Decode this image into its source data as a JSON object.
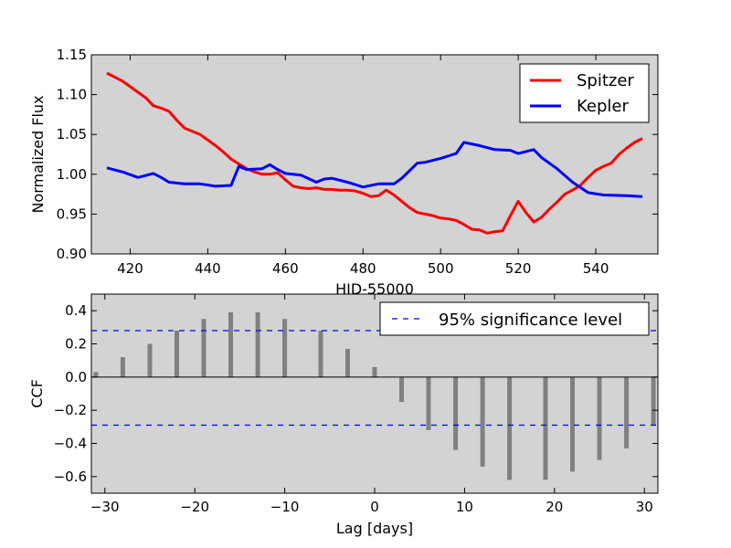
{
  "chart_data": [
    {
      "type": "line",
      "title": "",
      "xlabel": "HID-55000",
      "ylabel": "Normalized Flux",
      "xlim": [
        410,
        556
      ],
      "ylim": [
        0.9,
        1.15
      ],
      "xticks": [
        420,
        440,
        460,
        480,
        500,
        520,
        540
      ],
      "xtick_labels": [
        "420",
        "440",
        "460",
        "480",
        "500",
        "520",
        "540"
      ],
      "yticks": [
        0.9,
        0.95,
        1.0,
        1.05,
        1.1,
        1.15
      ],
      "ytick_labels": [
        "0.90",
        "0.95",
        "1.00",
        "1.05",
        "1.10",
        "1.15"
      ],
      "background": "#d3d3d3",
      "grid": false,
      "legend": "top-right",
      "series": [
        {
          "name": "Spitzer",
          "color": "#ff0000",
          "x": [
            414,
            416,
            418,
            420,
            422,
            424,
            426,
            428,
            430,
            432,
            434,
            436,
            438,
            440,
            442,
            444,
            446,
            448,
            450,
            452,
            454,
            456,
            458,
            460,
            462,
            464,
            466,
            468,
            470,
            472,
            474,
            476,
            478,
            480,
            482,
            484,
            486,
            488,
            490,
            492,
            494,
            496,
            498,
            500,
            502,
            504,
            506,
            508,
            510,
            512,
            514,
            516,
            518,
            520,
            522,
            524,
            526,
            528,
            530,
            532,
            534,
            536,
            538,
            540,
            542,
            544,
            546,
            548,
            550,
            552
          ],
          "values": [
            1.127,
            1.122,
            1.117,
            1.11,
            1.103,
            1.096,
            1.086,
            1.083,
            1.079,
            1.068,
            1.058,
            1.054,
            1.05,
            1.043,
            1.036,
            1.028,
            1.019,
            1.013,
            1.007,
            1.003,
            1.0,
            1.0,
            1.002,
            0.993,
            0.985,
            0.983,
            0.982,
            0.983,
            0.981,
            0.981,
            0.98,
            0.98,
            0.979,
            0.976,
            0.972,
            0.973,
            0.98,
            0.974,
            0.966,
            0.958,
            0.952,
            0.95,
            0.948,
            0.945,
            0.944,
            0.942,
            0.937,
            0.931,
            0.93,
            0.926,
            0.928,
            0.929,
            0.948,
            0.966,
            0.952,
            0.94,
            0.946,
            0.956,
            0.965,
            0.975,
            0.98,
            0.986,
            0.996,
            1.005,
            1.01,
            1.014,
            1.025,
            1.033,
            1.04,
            1.045
          ]
        },
        {
          "name": "Kepler",
          "color": "#0000ff",
          "x": [
            414,
            418,
            422,
            426,
            428,
            430,
            434,
            438,
            442,
            446,
            448,
            450,
            454,
            456,
            458,
            460,
            464,
            468,
            470,
            472,
            476,
            480,
            484,
            488,
            490,
            494,
            496,
            500,
            504,
            506,
            510,
            514,
            518,
            520,
            524,
            526,
            530,
            534,
            538,
            542,
            548,
            552
          ],
          "values": [
            1.008,
            1.003,
            0.996,
            1.001,
            0.996,
            0.99,
            0.988,
            0.988,
            0.985,
            0.986,
            1.01,
            1.006,
            1.007,
            1.012,
            1.006,
            1.001,
            0.999,
            0.99,
            0.994,
            0.995,
            0.99,
            0.984,
            0.988,
            0.988,
            0.995,
            1.014,
            1.015,
            1.02,
            1.026,
            1.04,
            1.036,
            1.031,
            1.03,
            1.026,
            1.031,
            1.021,
            1.007,
            0.99,
            0.977,
            0.974,
            0.973,
            0.972
          ]
        }
      ]
    },
    {
      "type": "bar",
      "title": "",
      "xlabel": "Lag [days]",
      "ylabel": "CCF",
      "xlim": [
        -31.5,
        31.5
      ],
      "ylim": [
        -0.7,
        0.5
      ],
      "xticks": [
        -30,
        -20,
        -10,
        0,
        10,
        20,
        30
      ],
      "xtick_labels": [
        "−30",
        "−20",
        "−10",
        "0",
        "10",
        "20",
        "30"
      ],
      "yticks": [
        -0.6,
        -0.4,
        -0.2,
        0.0,
        0.2,
        0.4
      ],
      "ytick_labels": [
        "−0.6",
        "−0.4",
        "−0.2",
        "0.0",
        "0.2",
        "0.4"
      ],
      "background": "#d3d3d3",
      "grid": false,
      "legend": "top-right",
      "bar_color": "#808080",
      "x": [
        -31,
        -28,
        -25,
        -22,
        -19,
        -16,
        -13,
        -10,
        -6,
        -3,
        0,
        3,
        6,
        9,
        12,
        15,
        19,
        22,
        25,
        28,
        31
      ],
      "values": [
        0.03,
        0.12,
        0.2,
        0.28,
        0.35,
        0.39,
        0.39,
        0.35,
        0.28,
        0.17,
        0.06,
        -0.15,
        -0.32,
        -0.44,
        -0.54,
        -0.62,
        -0.62,
        -0.57,
        -0.5,
        -0.43,
        -0.29
      ],
      "significance": {
        "name": "95% significance level",
        "color": "#0000ff",
        "levels": [
          0.28,
          -0.29
        ]
      }
    }
  ]
}
